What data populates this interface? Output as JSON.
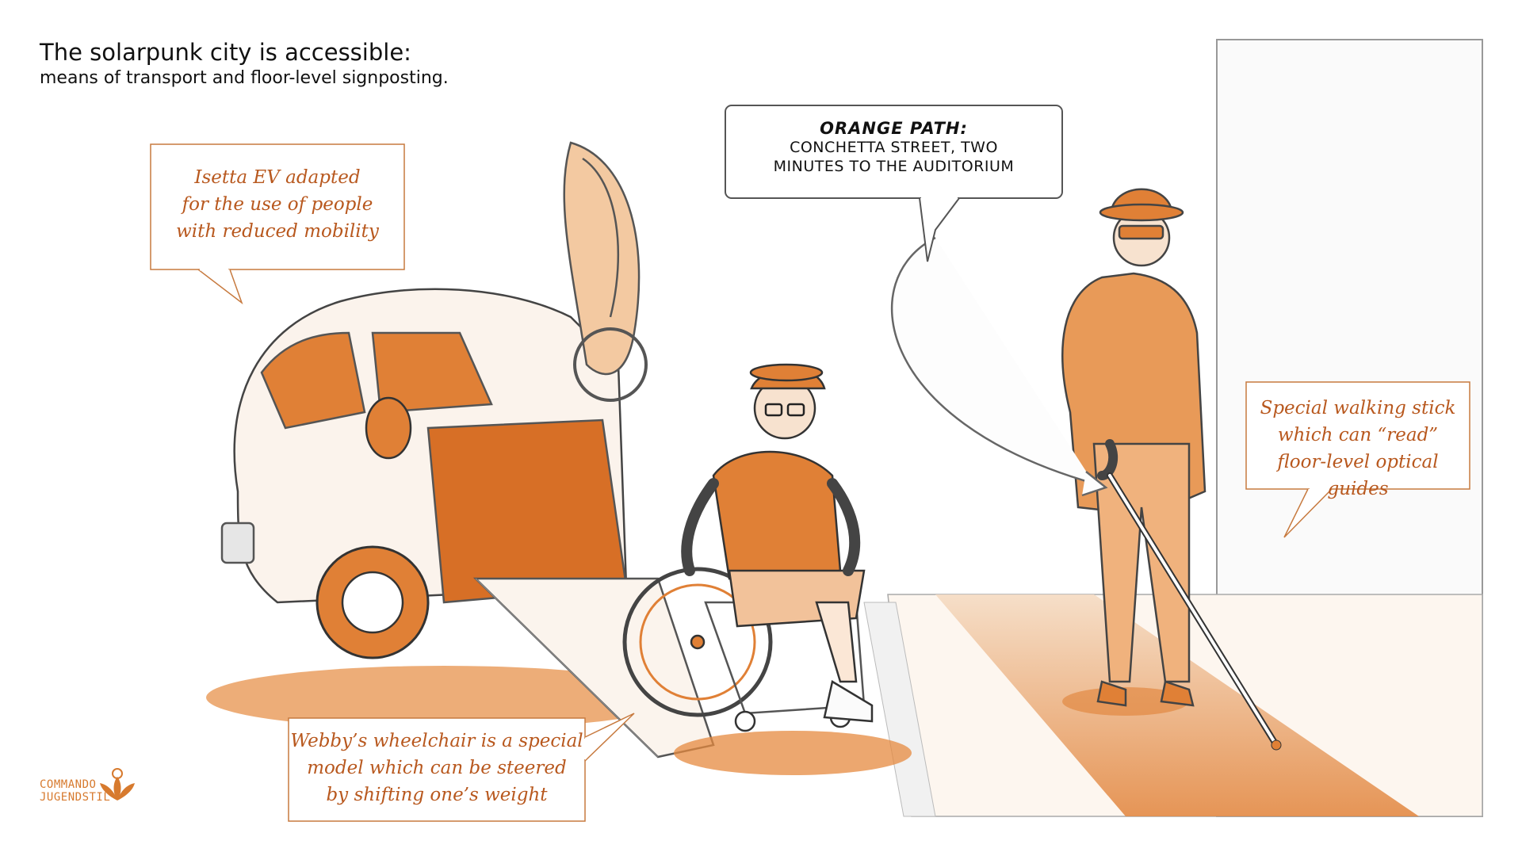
{
  "title": {
    "main": "The solarpunk city is accessible:",
    "sub": "means of transport and floor-level signposting."
  },
  "captions": {
    "isetta": [
      "Isetta EV adapted",
      "for the use of people",
      "with reduced mobility"
    ],
    "wheelchair": [
      "Webby’s wheelchair is a special",
      "model which can be steered",
      "by shifting one’s weight"
    ],
    "walking_stick": [
      "Special walking stick",
      "which can “read”",
      "floor-level optical guides"
    ]
  },
  "speech": {
    "speaker": "ORANGE PATH:",
    "lines": [
      "CONCHETTA STREET, TWO",
      "MINUTES TO THE AUDITORIUM"
    ]
  },
  "logo": {
    "lines": [
      "COMMANDO",
      "JUGENDSTIL"
    ],
    "icon": "lotus-icon"
  },
  "illustration": {
    "subjects": [
      "isetta-ev-car",
      "wheelchair-user",
      "blind-man-with-cane",
      "orange-floor-path"
    ]
  },
  "colors": {
    "accent": "#d77a2e",
    "accent_dark": "#b8581e",
    "ink": "#333333",
    "paper": "#ffffff"
  }
}
